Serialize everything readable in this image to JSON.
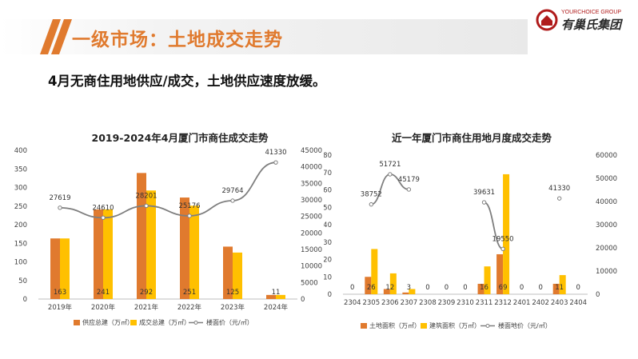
{
  "header": {
    "title": "一级市场：土地成交走势"
  },
  "logo": {
    "en": "YOURCHOICE GROUP",
    "cn": "有巢氏集团"
  },
  "subtitle": "4月无商住用地供应/成交，土地供应速度放缓。",
  "colors": {
    "supply": "#e07a2e",
    "transaction": "#ffc000",
    "price_line": "#7f7f7f",
    "accent": "#e07a2e"
  },
  "chart_data": [
    {
      "type": "bar",
      "title": "2019-2024年4月厦门市商住成交走势",
      "categories": [
        "2019年",
        "2020年",
        "2021年",
        "2022年",
        "2023年",
        "2024年"
      ],
      "series": [
        {
          "name": "供应总建（万㎡）",
          "kind": "bar",
          "axis": "left",
          "values": [
            163,
            241,
            339,
            273,
            141,
            11
          ],
          "labels": []
        },
        {
          "name": "成交总建（万㎡）",
          "kind": "bar",
          "axis": "left",
          "values": [
            163,
            241,
            292,
            251,
            125,
            11
          ],
          "labels": [
            "163",
            "241",
            "292",
            "251",
            "125",
            "11"
          ]
        },
        {
          "name": "楼面价（元/㎡）",
          "kind": "line",
          "axis": "right",
          "values": [
            27619,
            24610,
            28201,
            25176,
            29764,
            41330
          ],
          "labels": [
            "27619",
            "24610",
            "28201",
            "25176",
            "29764",
            "41330"
          ]
        }
      ],
      "left_axis": {
        "ylim": [
          0,
          400
        ],
        "ticks": [
          "0",
          "50",
          "100",
          "150",
          "200",
          "250",
          "300",
          "350",
          "400"
        ]
      },
      "right_axis": {
        "ylim": [
          0,
          45000
        ],
        "ticks": [
          "0",
          "5000",
          "10000",
          "15000",
          "20000",
          "25000",
          "30000",
          "35000",
          "40000",
          "45000"
        ]
      },
      "legend": "bottom"
    },
    {
      "type": "bar",
      "title": "近一年厦门市商住用地月度成交走势",
      "categories": [
        "2304",
        "2305",
        "2306",
        "2307",
        "2308",
        "2309",
        "2310",
        "2311",
        "2312",
        "2401",
        "2402",
        "2403",
        "2404"
      ],
      "series": [
        {
          "name": "土地面积（万㎡）",
          "kind": "bar",
          "axis": "left",
          "values": [
            0,
            10,
            3,
            1,
            0,
            0,
            0,
            6,
            23,
            0,
            0,
            6,
            0
          ],
          "labels": []
        },
        {
          "name": "建筑面积（万㎡）",
          "kind": "bar",
          "axis": "left",
          "values": [
            0,
            26,
            12,
            3,
            0,
            0,
            0,
            16,
            69,
            0,
            0,
            11,
            0
          ],
          "labels": [
            "0",
            "26",
            "12",
            "3",
            "0",
            "0",
            "0",
            "16",
            "69",
            "0",
            "0",
            "11",
            "0"
          ]
        },
        {
          "name": "楼面地价（元/㎡）",
          "kind": "line",
          "axis": "right",
          "values": [
            null,
            38752,
            51721,
            45179,
            null,
            null,
            null,
            39631,
            19550,
            null,
            null,
            41330,
            null
          ],
          "labels": [
            "",
            "38752",
            "51721",
            "45179",
            "",
            "",
            "",
            "39631",
            "19550",
            "",
            "",
            "41330",
            ""
          ]
        }
      ],
      "left_axis": {
        "ylim": [
          0,
          80
        ],
        "ticks": [
          "0",
          "10",
          "20",
          "30",
          "40",
          "50",
          "60",
          "70",
          "80"
        ]
      },
      "right_axis": {
        "ylim": [
          0,
          60000
        ],
        "ticks": [
          "0",
          "10000",
          "20000",
          "30000",
          "40000",
          "50000",
          "60000"
        ]
      },
      "legend": "bottom"
    }
  ]
}
